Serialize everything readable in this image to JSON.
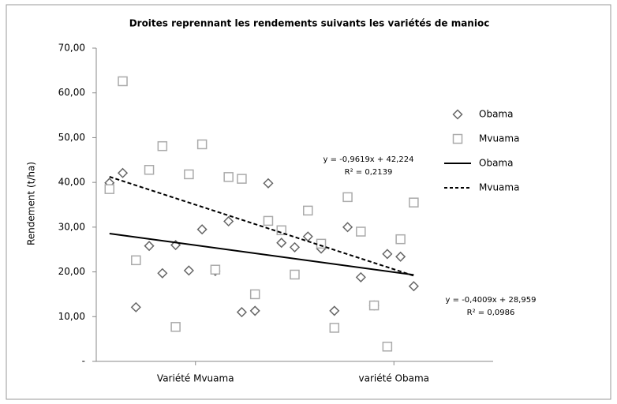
{
  "chart_data": {
    "type": "scatter",
    "title": "Droites reprennant les rendements suivants les variétés de manioc",
    "y_label": "Rendement (t/ha)",
    "x": [
      1,
      2,
      3,
      4,
      5,
      6,
      7,
      8,
      9,
      10,
      11,
      12,
      13,
      14,
      15,
      16,
      17,
      18,
      19,
      20,
      21,
      22,
      23,
      24
    ],
    "xlim": [
      0,
      30
    ],
    "xticks": [
      {
        "value": 7.5,
        "label": "Variété Mvuama"
      },
      {
        "value": 22.5,
        "label": "variété Obama"
      }
    ],
    "ylim": [
      0,
      70
    ],
    "yticks": [
      {
        "value": 0,
        "label": "-"
      },
      {
        "value": 10,
        "label": "10,00"
      },
      {
        "value": 20,
        "label": "20,00"
      },
      {
        "value": 30,
        "label": "30,00"
      },
      {
        "value": 40,
        "label": "40,00"
      },
      {
        "value": 50,
        "label": "50,00"
      },
      {
        "value": 60,
        "label": "60,00"
      },
      {
        "value": 70,
        "label": "70,00"
      }
    ],
    "grid": false,
    "series": [
      {
        "name": "Obama",
        "marker": "diamond",
        "color": "#666666",
        "values": [
          39.9,
          42.1,
          12.1,
          25.8,
          19.7,
          26.0,
          20.3,
          29.5,
          20.2,
          31.3,
          11.0,
          11.3,
          39.8,
          26.5,
          25.5,
          27.9,
          25.2,
          11.3,
          30.0,
          18.8,
          12.5,
          24.0,
          23.4,
          16.8
        ]
      },
      {
        "name": "Mvuama",
        "marker": "square",
        "color": "#aaaaaa",
        "values": [
          38.5,
          62.6,
          22.6,
          42.8,
          48.1,
          7.7,
          41.8,
          48.5,
          20.5,
          41.2,
          40.8,
          15.0,
          31.4,
          29.3,
          19.4,
          33.7,
          26.3,
          7.5,
          36.7,
          29.0,
          12.5,
          3.3,
          27.3,
          35.5
        ]
      },
      {
        "name": "Obama",
        "marker": "line",
        "dashed": false,
        "color": "#000000",
        "x": [
          1,
          24
        ],
        "values": [
          28.56,
          19.34
        ]
      },
      {
        "name": "Mvuama",
        "marker": "line",
        "dashed": true,
        "color": "#000000",
        "x": [
          1,
          24
        ],
        "values": [
          41.26,
          19.14
        ]
      }
    ],
    "annotations": [
      {
        "equation": "y = -0,9619x + 42,224",
        "r2": "R² = 0,2139"
      },
      {
        "equation": "y = -0,4009x + 28,959",
        "r2": "R² = 0,0986"
      }
    ]
  }
}
